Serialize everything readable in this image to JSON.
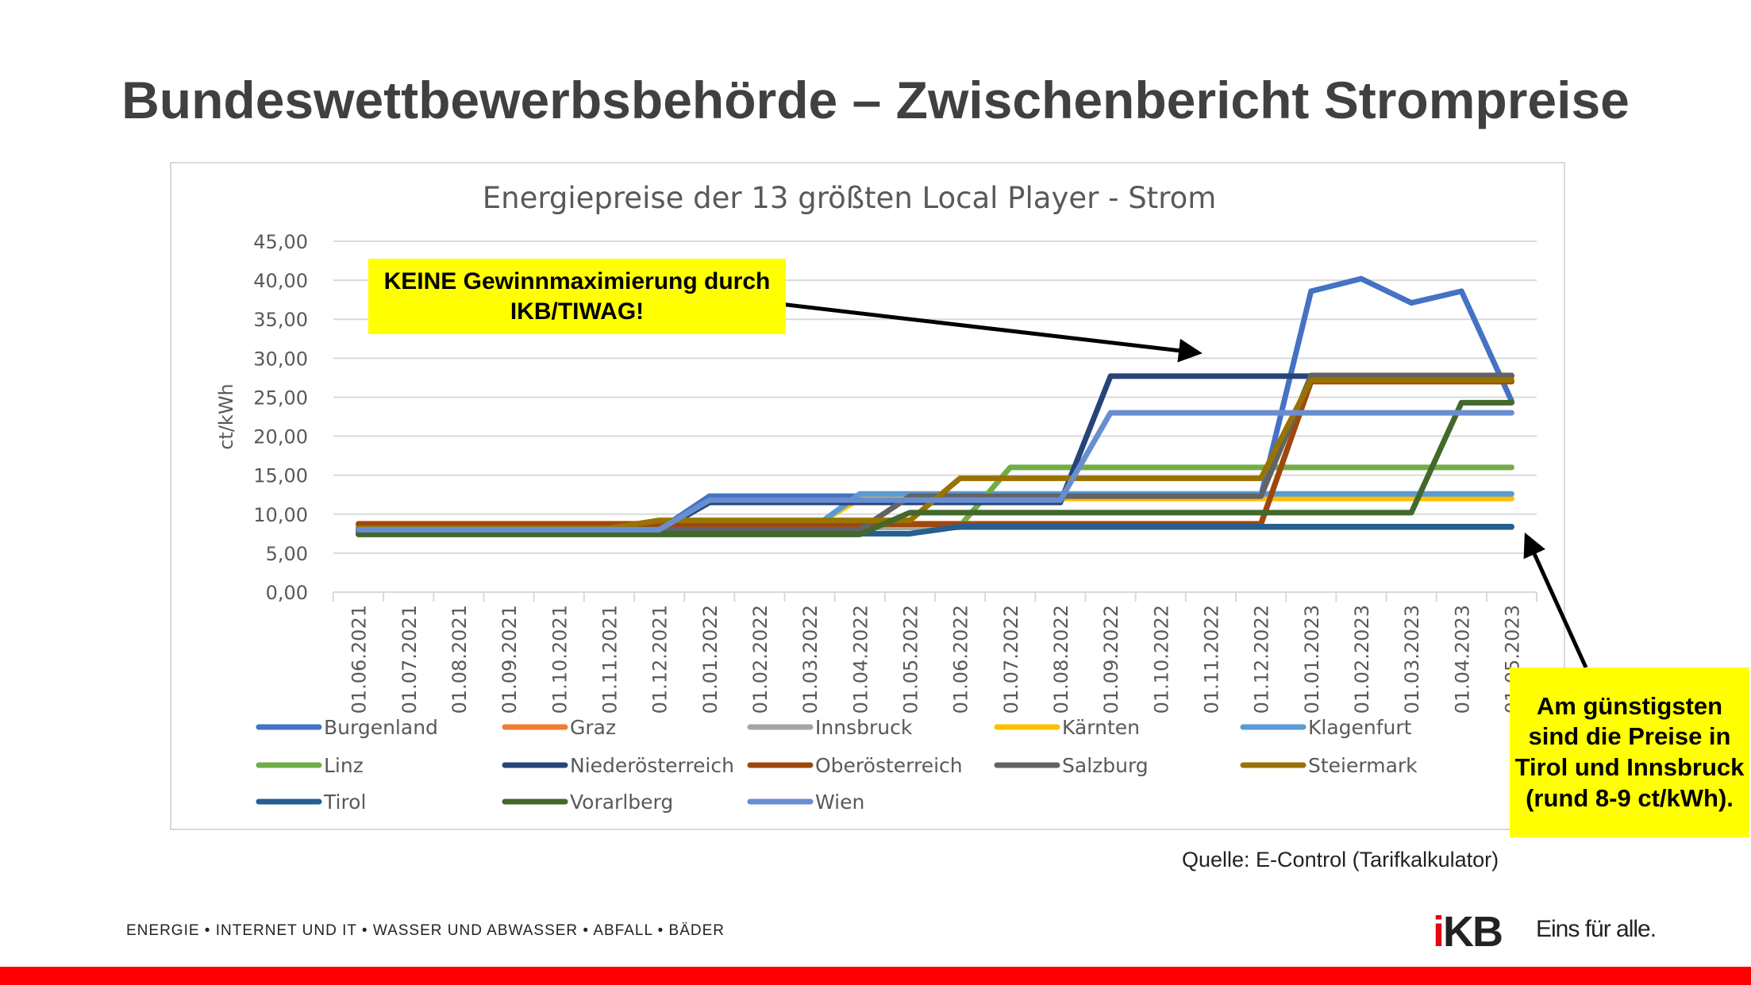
{
  "slide_title": "Bundeswettbewerbsbehörde – Zwischenbericht Strompreise",
  "annotations": {
    "note1": "KEINE Gewinnmaximierung durch IKB/TIWAG!",
    "note2": "Am günstigsten sind die Preise in Tirol und Innsbruck (rund 8-9 ct/kWh)."
  },
  "source": "Quelle: E-Control (Tarifkalkulator)",
  "footer": "ENERGIE • INTERNET UND IT • WASSER UND ABWASSER • ABFALL • BÄDER",
  "logo": {
    "text": "IKB",
    "slogan": "Eins für alle."
  },
  "chart_data": {
    "type": "line",
    "title": "Energiepreise der 13 größten Local Player -  Strom",
    "xlabel": "",
    "ylabel": "ct/kWh",
    "ylim": [
      0,
      45
    ],
    "yticks": [
      "0,00",
      "5,00",
      "10,00",
      "15,00",
      "20,00",
      "25,00",
      "30,00",
      "35,00",
      "40,00",
      "45,00"
    ],
    "grid": true,
    "legend_position": "bottom",
    "categories": [
      "01.06.2021",
      "01.07.2021",
      "01.08.2021",
      "01.09.2021",
      "01.10.2021",
      "01.11.2021",
      "01.12.2021",
      "01.01.2022",
      "01.02.2022",
      "01.03.2022",
      "01.04.2022",
      "01.05.2022",
      "01.06.2022",
      "01.07.2022",
      "01.08.2022",
      "01.09.2022",
      "01.10.2022",
      "01.11.2022",
      "01.12.2022",
      "01.01.2023",
      "01.02.2023",
      "01.03.2023",
      "01.04.2023",
      "01.05.2023"
    ],
    "series": [
      {
        "name": "Burgenland",
        "color": "#4472c4",
        "values": [
          8.0,
          8.0,
          8.0,
          8.0,
          8.0,
          8.0,
          8.0,
          12.3,
          12.3,
          12.3,
          12.3,
          12.3,
          12.3,
          12.3,
          12.3,
          12.3,
          12.3,
          12.3,
          12.3,
          38.6,
          40.2,
          37.1,
          38.6,
          24.5
        ]
      },
      {
        "name": "Graz",
        "color": "#ed7d31",
        "values": [
          8.8,
          8.8,
          8.8,
          8.8,
          8.8,
          8.8,
          8.8,
          8.8,
          8.8,
          8.8,
          8.8,
          8.8,
          8.8,
          8.8,
          8.8,
          8.8,
          8.8,
          8.8,
          8.8,
          27.0,
          27.0,
          27.0,
          27.0,
          27.0
        ]
      },
      {
        "name": "Innsbruck",
        "color": "#a5a5a5",
        "values": [
          8.3,
          8.3,
          8.3,
          8.3,
          8.3,
          8.3,
          8.3,
          8.3,
          8.3,
          8.3,
          8.3,
          8.3,
          8.3,
          8.3,
          8.3,
          8.3,
          8.3,
          8.3,
          8.3,
          8.3,
          8.3,
          8.3,
          8.3,
          8.3
        ]
      },
      {
        "name": "Kärnten",
        "color": "#ffc000",
        "values": [
          8.1,
          8.1,
          8.1,
          8.1,
          8.1,
          8.1,
          8.1,
          8.1,
          8.1,
          8.1,
          12.0,
          12.0,
          12.0,
          12.0,
          12.0,
          12.0,
          12.0,
          12.0,
          12.0,
          12.0,
          12.0,
          12.0,
          12.0,
          12.0
        ]
      },
      {
        "name": "Klagenfurt",
        "color": "#5b9bd5",
        "values": [
          7.9,
          7.9,
          7.9,
          7.9,
          7.9,
          7.9,
          7.9,
          7.9,
          7.9,
          7.9,
          12.6,
          12.6,
          12.6,
          12.6,
          12.6,
          12.6,
          12.6,
          12.6,
          12.6,
          12.6,
          12.6,
          12.6,
          12.6,
          12.6
        ]
      },
      {
        "name": "Linz",
        "color": "#70ad47",
        "values": [
          7.5,
          7.5,
          7.5,
          7.5,
          7.5,
          7.5,
          7.5,
          7.5,
          7.5,
          7.5,
          7.5,
          7.5,
          8.5,
          16.0,
          16.0,
          16.0,
          16.0,
          16.0,
          16.0,
          16.0,
          16.0,
          16.0,
          16.0,
          16.0
        ]
      },
      {
        "name": "Niederösterreich",
        "color": "#264478",
        "values": [
          7.8,
          7.8,
          7.8,
          7.8,
          7.8,
          7.8,
          7.8,
          11.5,
          11.5,
          11.5,
          11.5,
          11.5,
          11.5,
          11.5,
          11.5,
          27.7,
          27.7,
          27.7,
          27.7,
          27.7,
          27.7,
          27.7,
          27.7,
          27.7
        ]
      },
      {
        "name": "Oberösterreich",
        "color": "#9e480e",
        "values": [
          8.7,
          8.7,
          8.7,
          8.7,
          8.7,
          8.7,
          8.7,
          8.7,
          8.7,
          8.7,
          8.7,
          8.7,
          8.7,
          8.7,
          8.7,
          8.7,
          8.7,
          8.7,
          8.7,
          27.0,
          27.0,
          27.0,
          27.0,
          27.0
        ]
      },
      {
        "name": "Salzburg",
        "color": "#636363",
        "values": [
          8.0,
          8.0,
          8.0,
          8.0,
          8.0,
          8.0,
          8.0,
          8.0,
          8.0,
          8.0,
          8.0,
          12.3,
          12.3,
          12.3,
          12.3,
          12.3,
          12.3,
          12.3,
          12.3,
          27.8,
          27.8,
          27.8,
          27.8,
          27.8
        ]
      },
      {
        "name": "Steiermark",
        "color": "#997300",
        "values": [
          8.2,
          8.2,
          8.2,
          8.2,
          8.2,
          8.2,
          9.2,
          9.2,
          9.2,
          9.2,
          9.2,
          9.2,
          14.6,
          14.6,
          14.6,
          14.6,
          14.6,
          14.6,
          14.6,
          27.2,
          27.2,
          27.2,
          27.2,
          27.2
        ]
      },
      {
        "name": "Tirol",
        "color": "#255e91",
        "values": [
          7.5,
          7.5,
          7.5,
          7.5,
          7.5,
          7.5,
          7.5,
          7.5,
          7.5,
          7.5,
          7.5,
          7.5,
          8.4,
          8.4,
          8.4,
          8.4,
          8.4,
          8.4,
          8.4,
          8.4,
          8.4,
          8.4,
          8.4,
          8.4
        ]
      },
      {
        "name": "Vorarlberg",
        "color": "#43682b",
        "values": [
          7.4,
          7.4,
          7.4,
          7.4,
          7.4,
          7.4,
          7.4,
          7.4,
          7.4,
          7.4,
          7.4,
          10.2,
          10.2,
          10.2,
          10.2,
          10.2,
          10.2,
          10.2,
          10.2,
          10.2,
          10.2,
          10.2,
          24.3,
          24.3
        ]
      },
      {
        "name": "Wien",
        "color": "#698ed0",
        "values": [
          8.0,
          8.0,
          8.0,
          8.0,
          8.0,
          8.0,
          8.0,
          11.8,
          11.8,
          11.8,
          11.8,
          11.8,
          11.8,
          11.8,
          11.8,
          23.0,
          23.0,
          23.0,
          23.0,
          23.0,
          23.0,
          23.0,
          23.0,
          23.0
        ]
      }
    ]
  }
}
